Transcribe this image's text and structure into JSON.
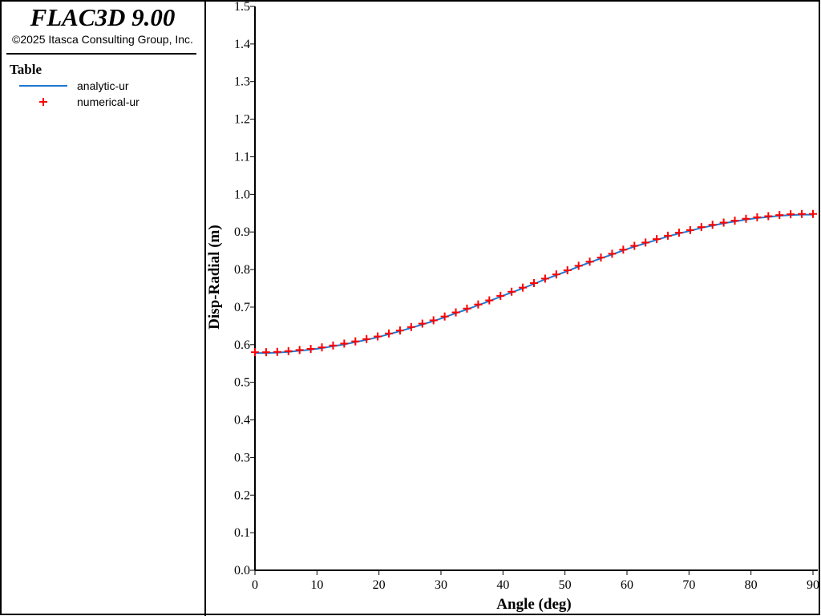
{
  "header": {
    "title": "FLAC3D 9.00",
    "copyright": "©2025 Itasca Consulting Group, Inc."
  },
  "chart_data": {
    "type": "line",
    "legend_title": "Table",
    "x_label": "Angle (deg)",
    "y_label": "Disp-Radial (m)",
    "x": [
      0,
      1.8,
      3.6,
      5.4,
      7.2,
      9,
      10.8,
      12.6,
      14.4,
      16.2,
      18,
      19.8,
      21.6,
      23.4,
      25.2,
      27,
      28.8,
      30.6,
      32.4,
      34.2,
      36,
      37.8,
      39.6,
      41.4,
      43.2,
      45,
      46.8,
      48.6,
      50.4,
      52.2,
      54,
      55.8,
      57.6,
      59.4,
      61.2,
      63,
      64.8,
      66.6,
      68.4,
      70.2,
      72,
      73.8,
      75.6,
      77.4,
      79.2,
      81,
      82.8,
      84.6,
      86.4,
      88.2,
      90
    ],
    "series": [
      {
        "name": "analytic-ur",
        "color": "#1f78d2",
        "style": "line",
        "values": [
          0.578,
          0.578,
          0.579,
          0.581,
          0.584,
          0.587,
          0.591,
          0.596,
          0.601,
          0.607,
          0.613,
          0.62,
          0.628,
          0.636,
          0.645,
          0.654,
          0.663,
          0.673,
          0.684,
          0.694,
          0.705,
          0.716,
          0.728,
          0.739,
          0.75,
          0.762,
          0.774,
          0.785,
          0.796,
          0.808,
          0.819,
          0.83,
          0.84,
          0.851,
          0.861,
          0.87,
          0.879,
          0.888,
          0.896,
          0.903,
          0.911,
          0.917,
          0.923,
          0.928,
          0.933,
          0.937,
          0.94,
          0.943,
          0.945,
          0.946,
          0.946
        ]
      },
      {
        "name": "numerical-ur",
        "color": "#ff0000",
        "style": "plus",
        "values": [
          0.58,
          0.58,
          0.581,
          0.583,
          0.586,
          0.589,
          0.593,
          0.598,
          0.603,
          0.609,
          0.615,
          0.622,
          0.63,
          0.638,
          0.647,
          0.656,
          0.665,
          0.675,
          0.686,
          0.696,
          0.707,
          0.718,
          0.73,
          0.741,
          0.752,
          0.764,
          0.776,
          0.787,
          0.798,
          0.81,
          0.821,
          0.832,
          0.842,
          0.853,
          0.863,
          0.872,
          0.881,
          0.89,
          0.898,
          0.905,
          0.913,
          0.919,
          0.925,
          0.93,
          0.935,
          0.939,
          0.942,
          0.945,
          0.947,
          0.948,
          0.948
        ]
      }
    ],
    "xlim": [
      0,
      90
    ],
    "ylim": [
      0,
      1.5
    ],
    "xticks": [
      0,
      10,
      20,
      30,
      40,
      50,
      60,
      70,
      80,
      90
    ],
    "yticks": [
      {
        "value": 0,
        "label": "0.0"
      },
      0.1,
      0.2,
      0.3,
      0.4,
      0.5,
      0.6,
      0.7,
      0.8,
      0.9,
      {
        "value": 1,
        "label": "1.0"
      },
      1.1,
      1.2,
      1.3,
      1.4,
      1.5
    ]
  }
}
